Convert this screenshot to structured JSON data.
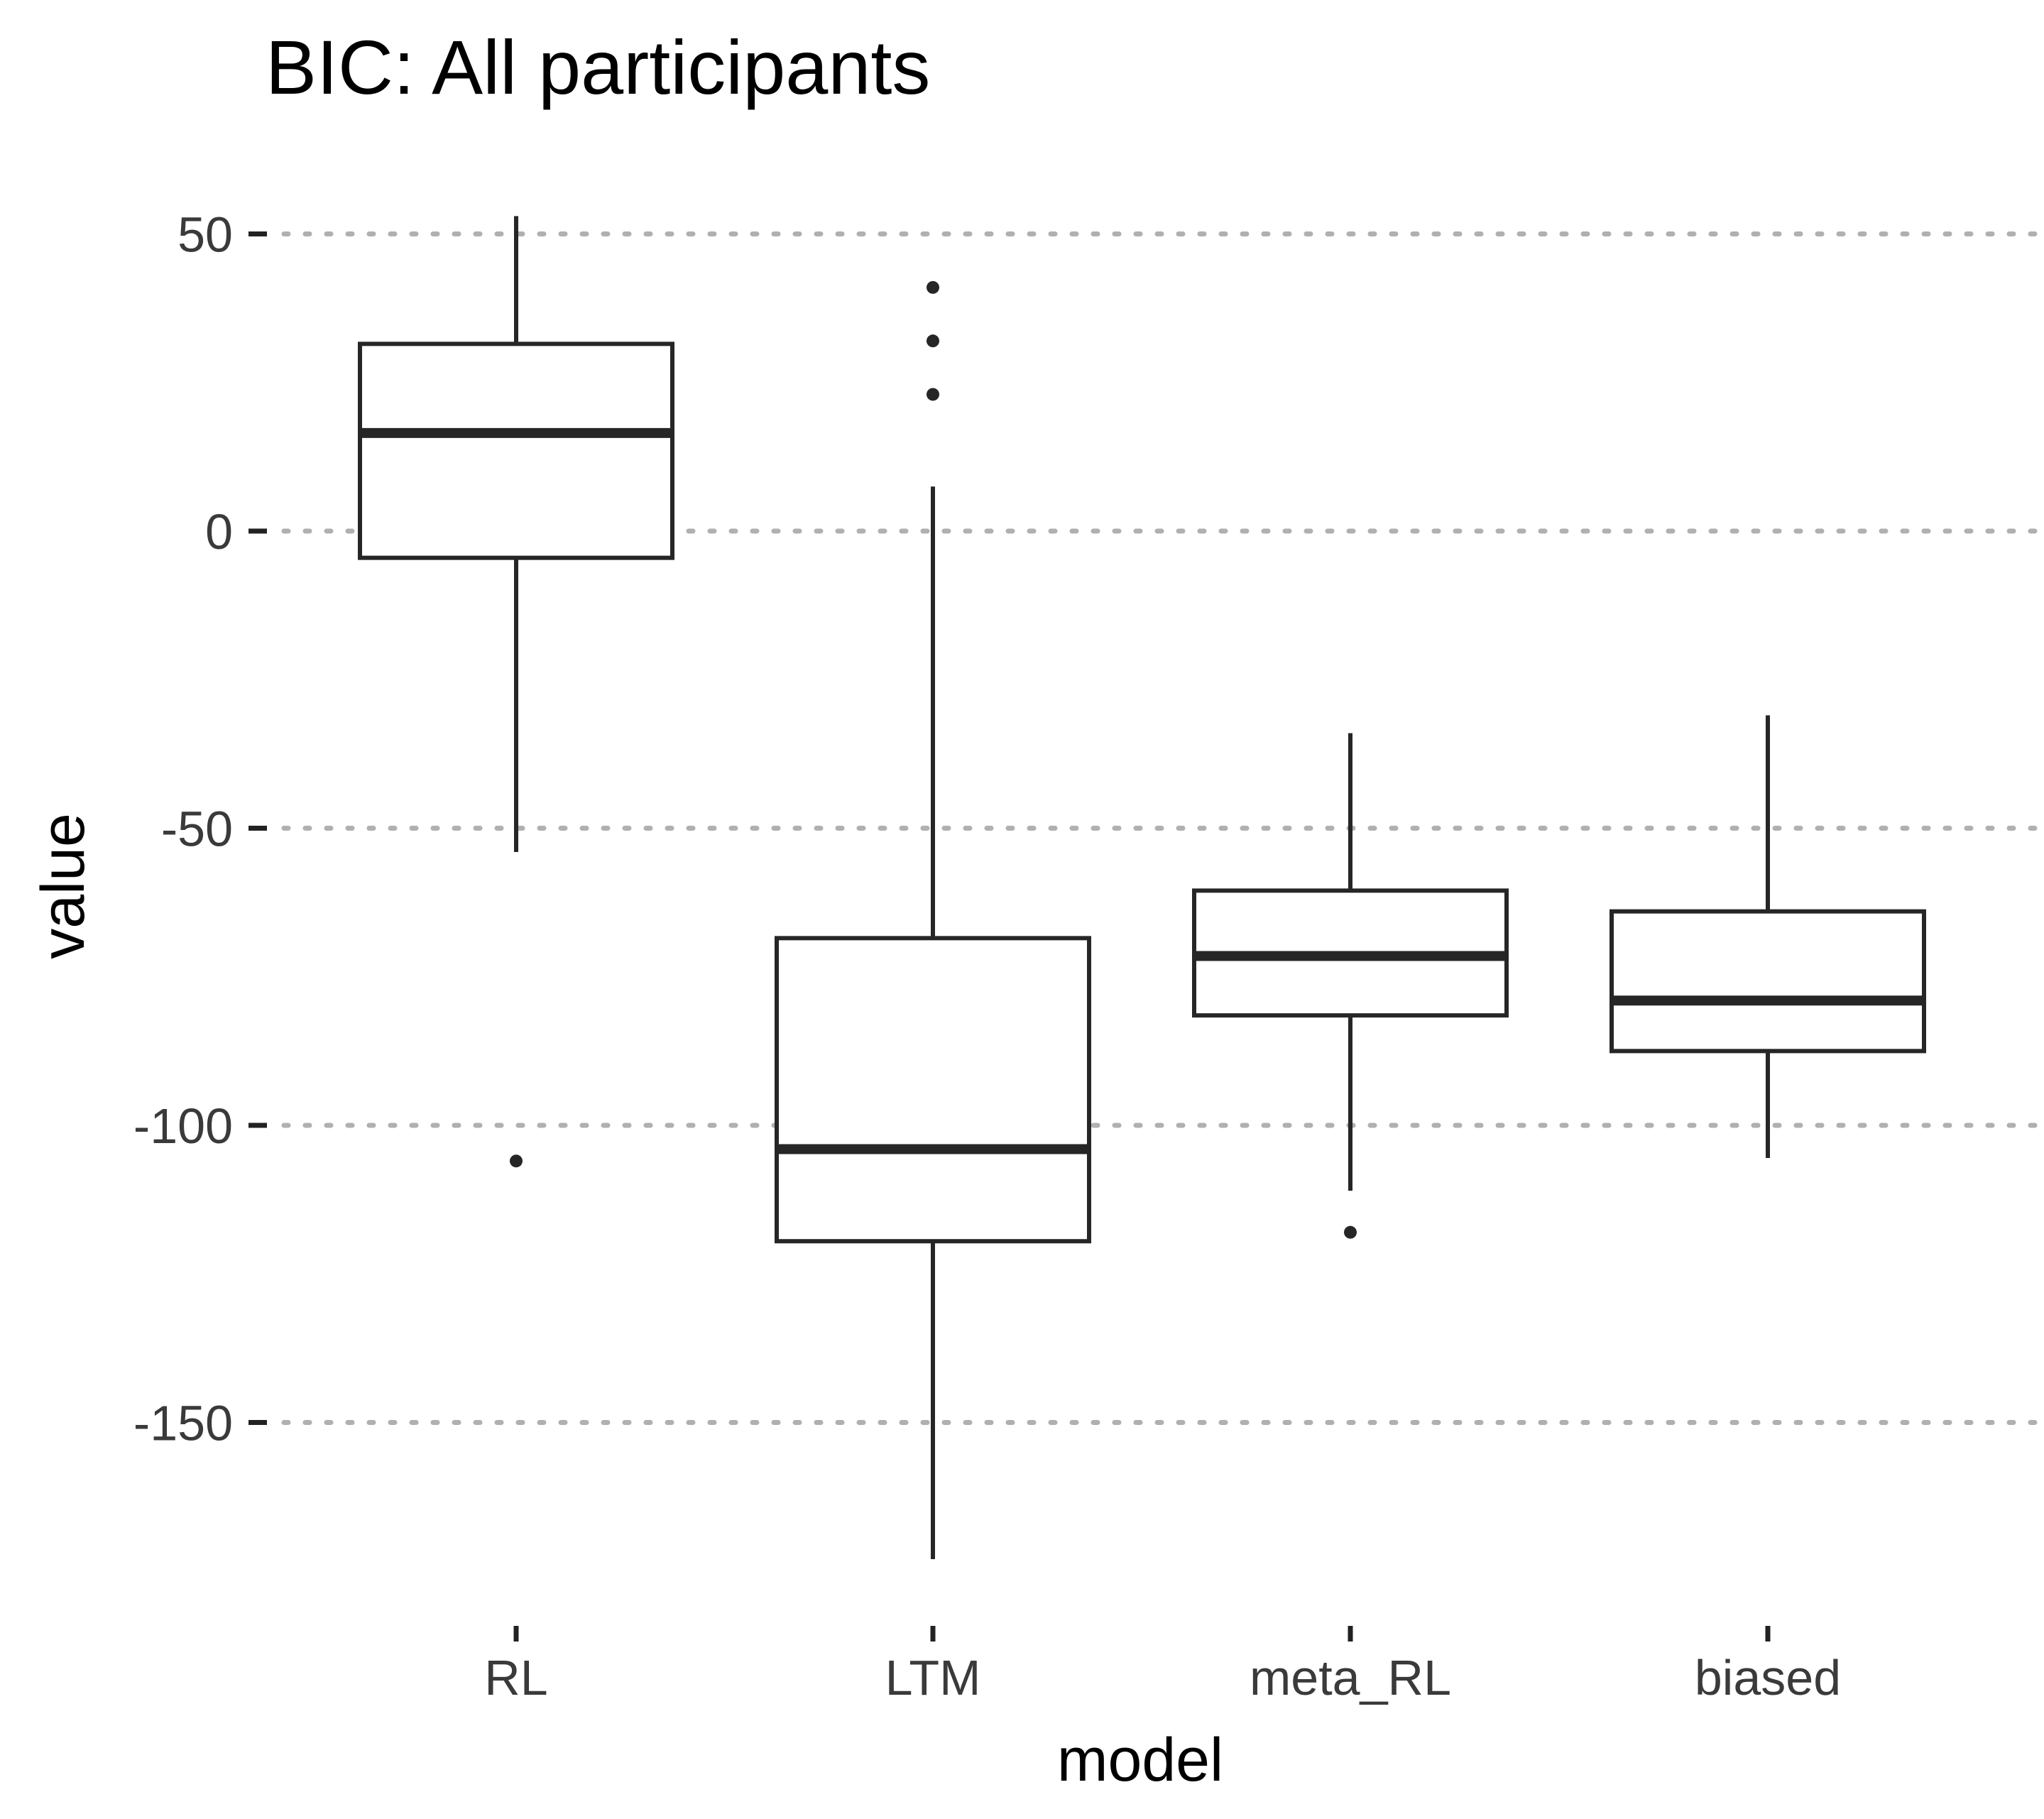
{
  "chart_data": {
    "type": "box",
    "title": "BIC: All participants",
    "xlabel": "model",
    "ylabel": "value",
    "ylim": [
      -183,
      58
    ],
    "yticks": [
      50,
      0,
      -50,
      -100,
      -150
    ],
    "ytick_labels": [
      "50",
      "0",
      "-50",
      "-100",
      "-150"
    ],
    "grid": {
      "horizontal": true,
      "vertical": false,
      "style": "dotted"
    },
    "legend": "none",
    "categories": [
      "RL",
      "LTM",
      "meta_RL",
      "biased"
    ],
    "boxes": [
      {
        "category": "RL",
        "whisker_low": -54,
        "q1": -4.5,
        "median": 16.5,
        "q3": 31.5,
        "whisker_high": 53,
        "outliers": [
          -106
        ]
      },
      {
        "category": "LTM",
        "whisker_low": -173,
        "q1": -119.5,
        "median": -104,
        "q3": -68.5,
        "whisker_high": 7.5,
        "outliers": [
          41,
          32,
          23
        ]
      },
      {
        "category": "meta_RL",
        "whisker_low": -111,
        "q1": -81.5,
        "median": -71.5,
        "q3": -60.5,
        "whisker_high": -34,
        "outliers": [
          -118
        ]
      },
      {
        "category": "biased",
        "whisker_low": -105.5,
        "q1": -87.5,
        "median": -79,
        "q3": -64,
        "whisker_high": -31,
        "outliers": []
      }
    ]
  }
}
